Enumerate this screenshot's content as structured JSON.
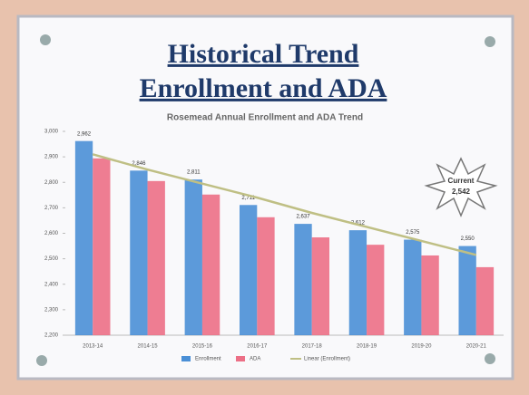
{
  "chart_data": {
    "type": "bar",
    "title": [
      "Historical Trend",
      "Enrollment and ADA"
    ],
    "subtitle": "Rosemead Annual Enrollment and ADA Trend",
    "categories": [
      "2013-14",
      "2014-15",
      "2015-16",
      "2016-17",
      "2017-18",
      "2018-19",
      "2019-20",
      "2020-21"
    ],
    "series": [
      {
        "name": "Enrollment",
        "type": "bar",
        "color": "#4a8fd6",
        "values": [
          2962,
          2846,
          2811,
          2711,
          2637,
          2612,
          2575,
          2550
        ],
        "value_labels": [
          "2,962",
          "2,846",
          "2,811",
          "2,711",
          "2,637",
          "2,612",
          "2,575",
          "2,550"
        ]
      },
      {
        "name": "ADA",
        "type": "bar",
        "color": "#ec6f86",
        "values": [
          2894,
          2805,
          2752,
          2663,
          2584,
          2555,
          2513,
          2467
        ]
      },
      {
        "name": "Linear (Enrollment)",
        "type": "line",
        "color": "#bfbf84",
        "values": [
          2910,
          2850,
          2795,
          2740,
          2680,
          2625,
          2570,
          2515
        ]
      }
    ],
    "ylim": [
      2200,
      3000
    ],
    "yticks": [
      {
        "value": 2200,
        "label": "2,200"
      },
      {
        "value": 2300,
        "label": "2,300"
      },
      {
        "value": 2400,
        "label": "2,400"
      },
      {
        "value": 2500,
        "label": "2,500"
      },
      {
        "value": 2600,
        "label": "2,600"
      },
      {
        "value": 2700,
        "label": "2,700"
      },
      {
        "value": 2800,
        "label": "2,800"
      },
      {
        "value": 2900,
        "label": "2,900"
      },
      {
        "value": 3000,
        "label": "3,000"
      }
    ],
    "grid": false,
    "legend": "bottom",
    "annotation": [
      "Current",
      "2,542"
    ]
  }
}
